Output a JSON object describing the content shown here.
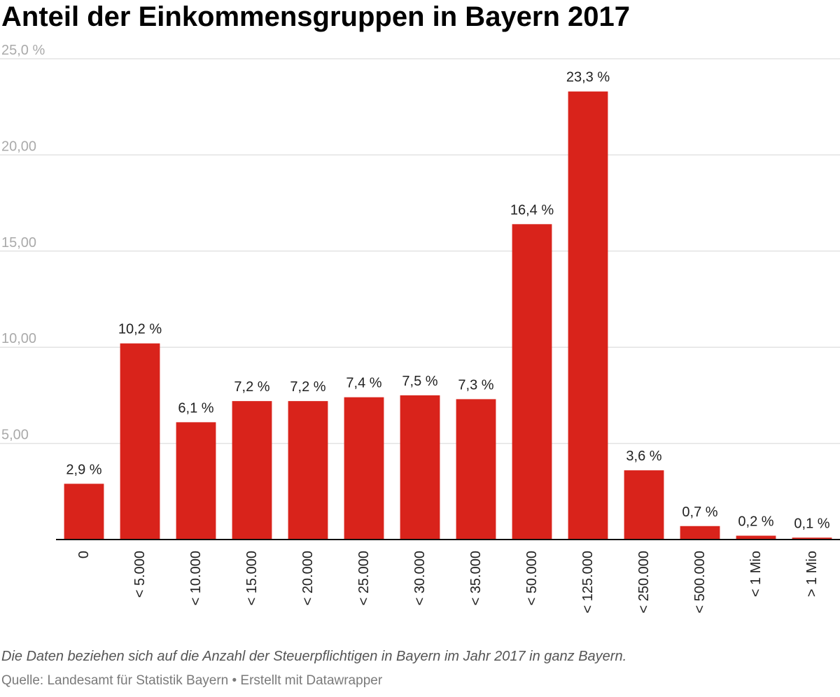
{
  "chart_data": {
    "type": "bar",
    "title": "Anteil der Einkommensgruppen in Bayern 2017",
    "xlabel": "",
    "ylabel": "",
    "ylim": [
      0,
      25
    ],
    "yticks": [
      {
        "value": 5,
        "label": "5,00"
      },
      {
        "value": 10,
        "label": "10,00"
      },
      {
        "value": 15,
        "label": "15,00"
      },
      {
        "value": 20,
        "label": "20,00"
      },
      {
        "value": 25,
        "label": "25,0 %"
      }
    ],
    "grid": true,
    "categories": [
      "0",
      "< 5.000",
      "< 10.000",
      "< 15.000",
      "< 20.000",
      "< 25.000",
      "< 30.000",
      "< 35.000",
      "< 50.000",
      "< 125.000",
      "< 250.000",
      "< 500.000",
      "< 1 Mio",
      "> 1 Mio"
    ],
    "values": [
      2.9,
      10.2,
      6.1,
      7.2,
      7.2,
      7.4,
      7.5,
      7.3,
      16.4,
      23.3,
      3.6,
      0.7,
      0.2,
      0.1
    ],
    "value_labels": [
      "2,9 %",
      "10,2 %",
      "6,1 %",
      "7,2 %",
      "7,2 %",
      "7,4 %",
      "7,5 %",
      "7,3 %",
      "16,4 %",
      "23,3 %",
      "3,6 %",
      "0,7 %",
      "0,2 %",
      "0,1 %"
    ],
    "bar_color": "#d9231b",
    "grid_color": "#e3e3e3",
    "axis_color": "#111111",
    "tick_label_color": "#aaaaaa"
  },
  "footer": {
    "note": "Die Daten beziehen sich auf die Anzahl der Steuerpflichtigen in Bayern im Jahr 2017 in ganz Bayern.",
    "source": "Quelle: Landesamt für Statistik Bayern • Erstellt mit Datawrapper"
  }
}
